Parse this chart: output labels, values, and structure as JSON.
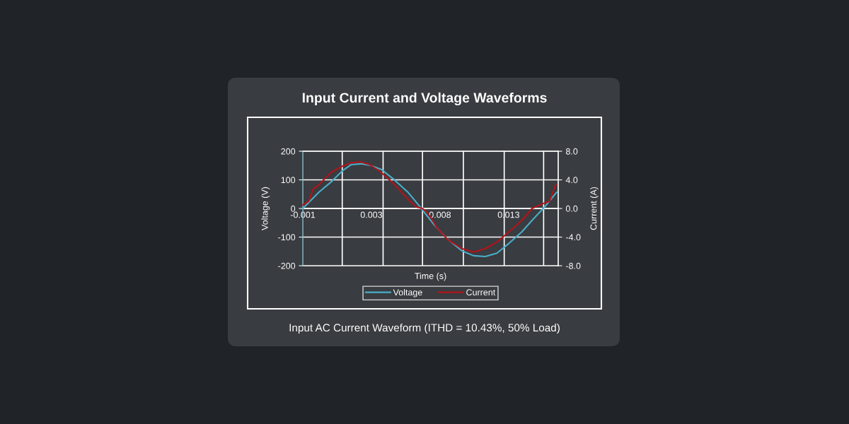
{
  "chart_data": {
    "type": "line",
    "title": "Input Current and Voltage Waveforms",
    "xlabel": "Time (s)",
    "ylabel": "Voltage (V)",
    "y2label": "Current (A)",
    "annotations": [
      "Input AC Current Waveform (ITHD = 10.43%, 50% Load)"
    ],
    "xlim": [
      -0.0013,
      0.0162
    ],
    "xticks": [
      {
        "value": -0.0013,
        "label": "-0.001"
      },
      {
        "value": 0.0014,
        "label": null
      },
      {
        "value": 0.0034,
        "label": "0.003"
      },
      {
        "value": 0.0042,
        "label": null
      },
      {
        "value": 0.0069,
        "label": null
      },
      {
        "value": 0.0081,
        "label": "0.008"
      },
      {
        "value": 0.0097,
        "label": null
      },
      {
        "value": 0.0125,
        "label": null
      },
      {
        "value": 0.0128,
        "label": "0.013"
      },
      {
        "value": 0.0152,
        "label": null
      }
    ],
    "ylim": [
      -200,
      200
    ],
    "yticks": [
      -200,
      -100,
      0,
      100,
      200
    ],
    "y2lim": [
      -8,
      8
    ],
    "y2ticks": [
      {
        "value": -8,
        "label": "-8.0"
      },
      {
        "value": -4,
        "label": "-4.0"
      },
      {
        "value": 0,
        "label": "0.0"
      },
      {
        "value": 4,
        "label": "4.0"
      },
      {
        "value": 8,
        "label": "8.0"
      }
    ],
    "grid": true,
    "legend": "bottom",
    "series": [
      {
        "name": "Voltage",
        "color": "#4aaec8",
        "x": [
          -0.0013,
          -0.0002,
          0.0006,
          0.0014,
          0.002,
          0.0027,
          0.0033,
          0.0041,
          0.005,
          0.0059,
          0.0065,
          0.0069,
          0.0077,
          0.0086,
          0.0096,
          0.0104,
          0.0112,
          0.012,
          0.0128,
          0.0137,
          0.0144,
          0.0153,
          0.0161
        ],
        "values": [
          0,
          57,
          91,
          131,
          153,
          156,
          151,
          136,
          99,
          57,
          20,
          -5,
          -57,
          -106,
          -148,
          -165,
          -168,
          -156,
          -123,
          -82,
          -42,
          7,
          57
        ]
      },
      {
        "name": "Current",
        "color": "#b3141b",
        "axis": "y2",
        "x": [
          -0.0013,
          -0.0009,
          -0.0006,
          -0.0002,
          0.0006,
          0.0014,
          0.002,
          0.0027,
          0.0033,
          0.0041,
          0.005,
          0.0059,
          0.0065,
          0.0069,
          0.0072,
          0.0076,
          0.0079,
          0.0086,
          0.0096,
          0.0104,
          0.0112,
          0.012,
          0.0128,
          0.0137,
          0.0144,
          0.0153,
          0.0156,
          0.016,
          0.0161
        ],
        "values": [
          0.5,
          1.0,
          2.7,
          3.3,
          5.0,
          5.9,
          6.4,
          6.5,
          6.1,
          5.0,
          3.3,
          1.3,
          0.2,
          0.0,
          -0.5,
          -1.7,
          -2.7,
          -4.3,
          -5.6,
          -6.1,
          -5.6,
          -4.7,
          -3.3,
          -1.7,
          0.0,
          0.8,
          1.0,
          3.2,
          3.3
        ]
      }
    ]
  }
}
